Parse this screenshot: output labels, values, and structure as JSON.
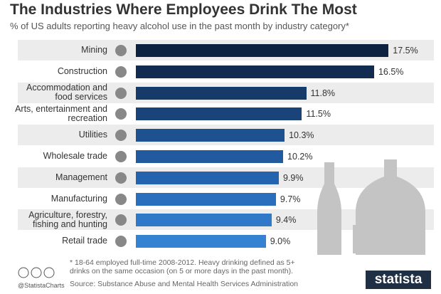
{
  "chart_data": {
    "type": "bar",
    "title": "The Industries Where Employees Drink The Most",
    "subtitle": "% of US adults reporting heavy alcohol use in the past month by industry category*",
    "categories": [
      "Mining",
      "Construction",
      "Accommodation and food services",
      "Arts, entertainment and recreation",
      "Utilities",
      "Wholesale trade",
      "Management",
      "Manufacturing",
      "Agriculture, forestry, fishing and hunting",
      "Retail trade"
    ],
    "values": [
      17.5,
      16.5,
      11.8,
      11.5,
      10.3,
      10.2,
      9.9,
      9.7,
      9.4,
      9.0
    ],
    "value_labels": [
      "17.5%",
      "16.5%",
      "11.8%",
      "11.5%",
      "10.3%",
      "10.2%",
      "9.9%",
      "9.7%",
      "9.4%",
      "9.0%"
    ],
    "colors": [
      "#0d2240",
      "#112c50",
      "#163b68",
      "#1a4479",
      "#1e5190",
      "#215a9e",
      "#2463ad",
      "#2a6fbe",
      "#2f79c8",
      "#3682d2"
    ],
    "footnote": "* 18-64 employed full-time 2008-2012. Heavy drinking defined as 5+ drinks on the same occasion (on 5 or more days in the past month).",
    "source": "Source: Substance Abuse and Mental Health Services Administration",
    "credit": "@StatistaCharts",
    "brand": "statista"
  }
}
